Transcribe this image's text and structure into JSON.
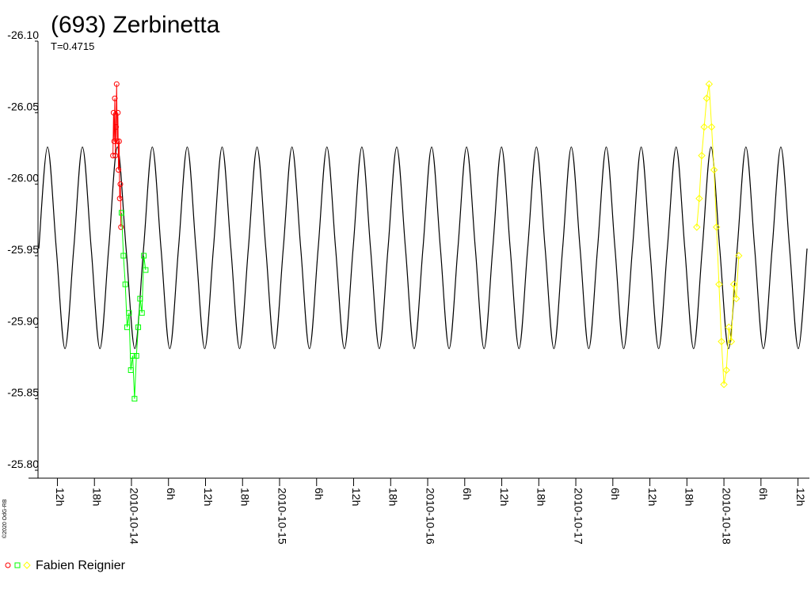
{
  "chart_data": {
    "type": "scatter",
    "title": "(693) Zerbinetta",
    "subtitle": "T=0.4715",
    "credit": "©2020 OdG-RB",
    "legend": "Fabien Reignier",
    "xlim": [
      -15.14,
      109.85
    ],
    "xticks": [
      {
        "value": -12,
        "label": "12h"
      },
      {
        "value": -6,
        "label": "18h"
      },
      {
        "value": 0,
        "label": "2010-10-14"
      },
      {
        "value": 6,
        "label": "6h"
      },
      {
        "value": 12,
        "label": "12h"
      },
      {
        "value": 18,
        "label": "18h"
      },
      {
        "value": 24,
        "label": "2010-10-15"
      },
      {
        "value": 30,
        "label": "6h"
      },
      {
        "value": 36,
        "label": "12h"
      },
      {
        "value": 42,
        "label": "18h"
      },
      {
        "value": 48,
        "label": "2010-10-16"
      },
      {
        "value": 54,
        "label": "6h"
      },
      {
        "value": 60,
        "label": "12h"
      },
      {
        "value": 66,
        "label": "18h"
      },
      {
        "value": 72,
        "label": "2010-10-17"
      },
      {
        "value": 78,
        "label": "6h"
      },
      {
        "value": 84,
        "label": "12h"
      },
      {
        "value": 90,
        "label": "18h"
      },
      {
        "value": 96,
        "label": "2010-10-18"
      },
      {
        "value": 102,
        "label": "6h"
      },
      {
        "value": 108,
        "label": "12h"
      }
    ],
    "ylim": [
      -26.1,
      -25.8
    ],
    "y_reversed": true,
    "yticks": [
      {
        "value": -26.1,
        "label": "-26.10"
      },
      -26.05,
      {
        "value": -26.0,
        "label": "-26.00"
      },
      -25.95,
      {
        "value": -25.9,
        "label": "-25.90"
      },
      -25.85,
      {
        "value": -25.8,
        "label": "-25.80"
      }
    ],
    "model": {
      "color": "#000000",
      "x": [
        -15.01,
        -13.6,
        -12.18,
        -10.77,
        -9.35,
        -7.94,
        -6.52,
        -5.11,
        -3.69,
        -2.28,
        -0.87,
        0.55,
        1.96,
        3.38,
        4.79,
        6.21,
        7.62,
        9.04,
        10.45,
        11.87,
        13.28,
        14.69,
        16.11,
        17.52,
        18.94,
        20.35,
        21.77,
        23.18,
        24.6,
        26.01,
        27.43,
        28.84,
        30.25,
        31.67,
        33.08,
        34.5,
        35.91,
        37.33,
        38.74,
        40.16,
        41.57,
        42.98,
        44.4,
        45.81,
        47.23,
        48.64,
        50.06,
        51.47,
        52.89,
        54.3,
        55.72,
        57.13,
        58.54,
        59.96,
        61.37,
        62.79,
        64.2,
        65.62,
        67.03,
        68.45,
        69.86,
        71.27,
        72.69,
        74.1,
        75.52,
        76.93,
        78.35,
        79.76,
        81.18,
        82.59,
        84.0,
        85.42,
        86.83,
        88.25,
        89.66,
        91.08,
        92.49,
        93.91,
        95.32,
        96.74,
        98.15,
        99.56,
        100.98,
        102.39,
        103.81,
        105.22,
        106.64,
        108.05,
        109.47
      ],
      "values": [
        -25.955,
        -26.026,
        -25.955,
        -25.885,
        -25.955,
        -26.026,
        -25.955,
        -25.885,
        -25.955,
        -26.026,
        -25.955,
        -25.885,
        -25.955,
        -26.026,
        -25.955,
        -25.885,
        -25.955,
        -26.026,
        -25.955,
        -25.885,
        -25.955,
        -26.026,
        -25.955,
        -25.885,
        -25.955,
        -26.026,
        -25.955,
        -25.885,
        -25.955,
        -26.026,
        -25.955,
        -25.885,
        -25.955,
        -26.026,
        -25.955,
        -25.885,
        -25.955,
        -26.026,
        -25.955,
        -25.885,
        -25.955,
        -26.026,
        -25.955,
        -25.885,
        -25.955,
        -26.026,
        -25.955,
        -25.885,
        -25.955,
        -26.026,
        -25.955,
        -25.885,
        -25.955,
        -26.026,
        -25.955,
        -25.885,
        -25.955,
        -26.026,
        -25.955,
        -25.885,
        -25.955,
        -26.026,
        -25.955,
        -25.885,
        -25.955,
        -26.026,
        -25.955,
        -25.885,
        -25.955,
        -26.026,
        -25.955,
        -25.885,
        -25.955,
        -26.026,
        -25.955,
        -25.885,
        -25.955,
        -26.026,
        -25.955,
        -25.885,
        -25.955,
        -26.026,
        -25.955,
        -25.885,
        -25.955,
        -26.026,
        -25.955,
        -25.885,
        -25.955
      ]
    },
    "series": [
      {
        "color": "#ff0000",
        "marker": "circle",
        "x": [
          -3.0,
          -2.9,
          -2.8,
          -2.7,
          -2.6,
          -2.5,
          -2.4,
          -2.3,
          -2.2,
          -2.1,
          -2.0,
          -1.9,
          -1.8,
          -1.7
        ],
        "values": [
          -26.02,
          -26.05,
          -26.03,
          -26.06,
          -26.02,
          -26.04,
          -26.07,
          -26.03,
          -26.05,
          -26.01,
          -26.03,
          -25.99,
          -26.0,
          -25.97
        ]
      },
      {
        "color": "#00ff00",
        "marker": "square",
        "x": [
          -1.6,
          -1.3,
          -1.0,
          -0.7,
          -0.4,
          -0.1,
          0.2,
          0.5,
          0.8,
          1.1,
          1.4,
          1.7,
          2.0,
          2.3
        ],
        "values": [
          -25.98,
          -25.95,
          -25.93,
          -25.9,
          -25.91,
          -25.87,
          -25.88,
          -25.85,
          -25.88,
          -25.9,
          -25.92,
          -25.91,
          -25.95,
          -25.94
        ]
      },
      {
        "color": "#ffff00",
        "marker": "diamond",
        "x": [
          91.6,
          92.0,
          92.4,
          92.8,
          93.2,
          93.6,
          94.0,
          94.4,
          94.8,
          95.2,
          95.6,
          96.0,
          96.4,
          96.8,
          97.2,
          97.6,
          98.0,
          98.4
        ],
        "values": [
          -25.97,
          -25.99,
          -26.02,
          -26.04,
          -26.06,
          -26.07,
          -26.04,
          -26.01,
          -25.97,
          -25.93,
          -25.89,
          -25.86,
          -25.87,
          -25.9,
          -25.89,
          -25.93,
          -25.92,
          -25.95
        ]
      }
    ]
  }
}
